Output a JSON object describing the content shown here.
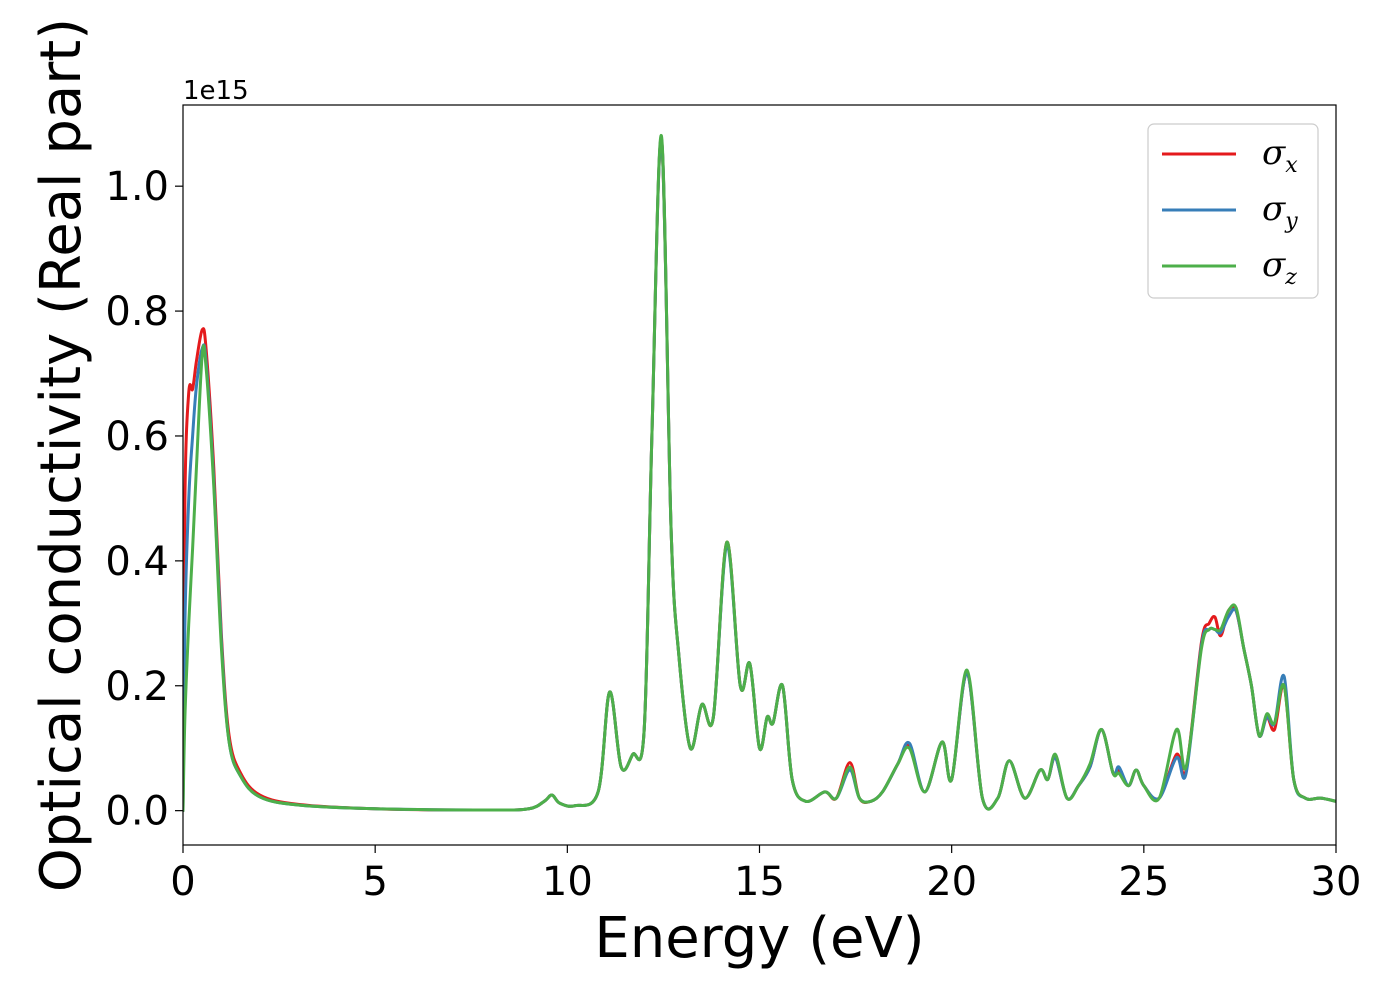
{
  "chart_data": {
    "type": "line",
    "xlabel": "Energy (eV)",
    "ylabel": "Optical conductivity (Real part)",
    "y_offset_text": "1e15",
    "y_multiplier": 1000000000000000.0,
    "xlim": [
      0,
      30
    ],
    "ylim": [
      -0.055,
      1.13
    ],
    "xticks": [
      0,
      5,
      10,
      15,
      20,
      25,
      30
    ],
    "xtick_labels": [
      "0",
      "5",
      "10",
      "15",
      "20",
      "25",
      "30"
    ],
    "yticks": [
      0.0,
      0.2,
      0.4,
      0.6,
      0.8,
      1.0
    ],
    "ytick_labels": [
      "0.0",
      "0.2",
      "0.4",
      "0.6",
      "0.8",
      "1.0"
    ],
    "grid": false,
    "legend_position": "top-right",
    "series": [
      {
        "name": "σ",
        "subscript": "x",
        "color": "#e41a1c",
        "x": [
          0,
          0.05,
          0.15,
          0.25,
          0.35,
          0.5,
          0.6,
          0.8,
          1.0,
          1.2,
          1.5,
          2,
          3,
          5,
          8,
          9,
          9.4,
          9.6,
          9.8,
          10.2,
          10.8,
          11.1,
          11.4,
          11.7,
          12.0,
          12.2,
          12.45,
          12.7,
          12.9,
          13.2,
          13.5,
          13.8,
          14.15,
          14.5,
          14.75,
          15.0,
          15.2,
          15.35,
          15.6,
          15.85,
          16.2,
          16.7,
          17.0,
          17.35,
          17.6,
          17.9,
          18.2,
          18.6,
          18.9,
          19.3,
          19.75,
          20.0,
          20.4,
          20.8,
          21.2,
          21.5,
          21.9,
          22.3,
          22.5,
          22.7,
          23.0,
          23.3,
          23.6,
          23.9,
          24.2,
          24.35,
          24.6,
          24.8,
          25.0,
          25.4,
          25.85,
          26.1,
          26.5,
          26.7,
          26.85,
          27.0,
          27.2,
          27.4,
          27.6,
          27.8,
          28.0,
          28.2,
          28.4,
          28.65,
          28.9,
          29.2,
          29.6,
          30
        ],
        "y": [
          0,
          0.5,
          0.67,
          0.675,
          0.72,
          0.77,
          0.74,
          0.55,
          0.28,
          0.12,
          0.06,
          0.025,
          0.01,
          0.003,
          0.001,
          0.003,
          0.015,
          0.025,
          0.012,
          0.008,
          0.03,
          0.19,
          0.07,
          0.09,
          0.13,
          0.6,
          1.075,
          0.45,
          0.25,
          0.1,
          0.17,
          0.15,
          0.43,
          0.2,
          0.235,
          0.1,
          0.15,
          0.14,
          0.2,
          0.05,
          0.015,
          0.03,
          0.02,
          0.077,
          0.02,
          0.015,
          0.03,
          0.075,
          0.105,
          0.03,
          0.11,
          0.05,
          0.22,
          0.02,
          0.02,
          0.08,
          0.02,
          0.065,
          0.05,
          0.085,
          0.02,
          0.04,
          0.07,
          0.13,
          0.06,
          0.065,
          0.04,
          0.065,
          0.04,
          0.02,
          0.09,
          0.065,
          0.27,
          0.3,
          0.31,
          0.28,
          0.32,
          0.32,
          0.26,
          0.2,
          0.12,
          0.15,
          0.13,
          0.2,
          0.05,
          0.02,
          0.02,
          0.015
        ]
      },
      {
        "name": "σ",
        "subscript": "y",
        "color": "#377eb8",
        "x": [
          0,
          0.05,
          0.15,
          0.25,
          0.35,
          0.5,
          0.6,
          0.8,
          1.0,
          1.2,
          1.5,
          2,
          3,
          5,
          8,
          9,
          9.4,
          9.6,
          9.8,
          10.2,
          10.8,
          11.1,
          11.4,
          11.7,
          12.0,
          12.2,
          12.45,
          12.7,
          12.9,
          13.2,
          13.5,
          13.8,
          14.15,
          14.5,
          14.75,
          15.0,
          15.2,
          15.35,
          15.6,
          15.85,
          16.2,
          16.7,
          17.0,
          17.35,
          17.6,
          17.9,
          18.2,
          18.6,
          18.9,
          19.3,
          19.75,
          20.0,
          20.4,
          20.8,
          21.2,
          21.5,
          21.9,
          22.3,
          22.5,
          22.7,
          23.0,
          23.3,
          23.6,
          23.9,
          24.2,
          24.35,
          24.6,
          24.8,
          25.0,
          25.4,
          25.85,
          26.1,
          26.5,
          26.7,
          26.85,
          27.0,
          27.2,
          27.4,
          27.6,
          27.8,
          28.0,
          28.2,
          28.4,
          28.65,
          28.9,
          29.2,
          29.6,
          30
        ],
        "y": [
          0,
          0.3,
          0.5,
          0.6,
          0.68,
          0.74,
          0.72,
          0.53,
          0.27,
          0.11,
          0.055,
          0.022,
          0.009,
          0.003,
          0.001,
          0.003,
          0.015,
          0.025,
          0.012,
          0.008,
          0.03,
          0.19,
          0.07,
          0.09,
          0.13,
          0.6,
          1.075,
          0.45,
          0.25,
          0.1,
          0.17,
          0.15,
          0.425,
          0.2,
          0.235,
          0.1,
          0.15,
          0.14,
          0.2,
          0.05,
          0.015,
          0.03,
          0.02,
          0.065,
          0.02,
          0.015,
          0.03,
          0.075,
          0.108,
          0.03,
          0.11,
          0.05,
          0.22,
          0.02,
          0.02,
          0.08,
          0.02,
          0.065,
          0.05,
          0.085,
          0.02,
          0.04,
          0.07,
          0.13,
          0.06,
          0.07,
          0.04,
          0.065,
          0.04,
          0.02,
          0.085,
          0.06,
          0.265,
          0.29,
          0.29,
          0.285,
          0.31,
          0.32,
          0.26,
          0.2,
          0.12,
          0.15,
          0.14,
          0.215,
          0.05,
          0.02,
          0.02,
          0.015
        ]
      },
      {
        "name": "σ",
        "subscript": "z",
        "color": "#4daf4a",
        "x": [
          0,
          0.05,
          0.15,
          0.25,
          0.35,
          0.5,
          0.6,
          0.8,
          1.0,
          1.2,
          1.5,
          2,
          3,
          5,
          8,
          9,
          9.4,
          9.6,
          9.8,
          10.2,
          10.8,
          11.1,
          11.4,
          11.7,
          12.0,
          12.2,
          12.45,
          12.7,
          12.9,
          13.2,
          13.5,
          13.8,
          14.15,
          14.5,
          14.75,
          15.0,
          15.2,
          15.35,
          15.6,
          15.85,
          16.2,
          16.7,
          17.0,
          17.35,
          17.6,
          17.9,
          18.2,
          18.6,
          18.9,
          19.3,
          19.75,
          20.0,
          20.4,
          20.8,
          21.2,
          21.5,
          21.9,
          22.3,
          22.5,
          22.7,
          23.0,
          23.3,
          23.6,
          23.9,
          24.2,
          24.35,
          24.6,
          24.8,
          25.0,
          25.4,
          25.85,
          26.1,
          26.5,
          26.7,
          26.85,
          27.0,
          27.2,
          27.4,
          27.6,
          27.8,
          28.0,
          28.2,
          28.4,
          28.65,
          28.9,
          29.2,
          29.6,
          30
        ],
        "y": [
          0,
          0.15,
          0.3,
          0.42,
          0.55,
          0.73,
          0.71,
          0.52,
          0.26,
          0.11,
          0.055,
          0.022,
          0.009,
          0.003,
          0.001,
          0.003,
          0.015,
          0.025,
          0.012,
          0.008,
          0.03,
          0.19,
          0.07,
          0.09,
          0.13,
          0.6,
          1.08,
          0.45,
          0.25,
          0.1,
          0.17,
          0.15,
          0.43,
          0.2,
          0.235,
          0.1,
          0.15,
          0.14,
          0.2,
          0.05,
          0.015,
          0.03,
          0.02,
          0.07,
          0.02,
          0.015,
          0.03,
          0.075,
          0.1,
          0.03,
          0.11,
          0.05,
          0.225,
          0.02,
          0.02,
          0.08,
          0.02,
          0.065,
          0.05,
          0.09,
          0.02,
          0.04,
          0.075,
          0.13,
          0.06,
          0.06,
          0.04,
          0.065,
          0.04,
          0.02,
          0.13,
          0.07,
          0.26,
          0.29,
          0.29,
          0.29,
          0.32,
          0.325,
          0.26,
          0.2,
          0.12,
          0.155,
          0.14,
          0.2,
          0.05,
          0.02,
          0.02,
          0.015
        ]
      }
    ]
  }
}
